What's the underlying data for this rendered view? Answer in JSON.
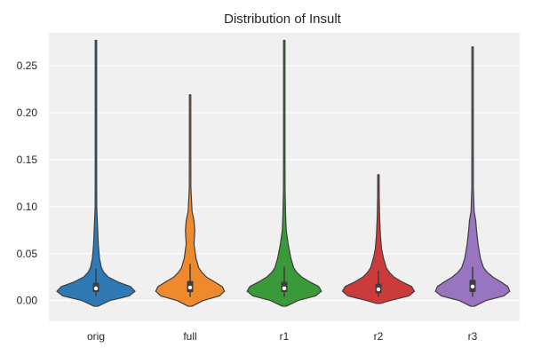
{
  "chart_data": {
    "type": "violin",
    "title": "Distribution of Insult",
    "xlabel": "",
    "ylabel": "",
    "ylim": [
      -0.022,
      0.285
    ],
    "yticks": [
      0.0,
      0.05,
      0.1,
      0.15,
      0.2,
      0.25
    ],
    "ytick_labels": [
      "0.00",
      "0.05",
      "0.10",
      "0.15",
      "0.20",
      "0.25"
    ],
    "grid": true,
    "background": "#f0f0f0",
    "categories": [
      "orig",
      "full",
      "r1",
      "r2",
      "r3"
    ],
    "series": [
      {
        "color": "#2f79b5",
        "min": -0.006,
        "max": 0.277,
        "q1": 0.009,
        "median": 0.013,
        "q3": 0.019,
        "whisker_low": 0.005,
        "whisker_high": 0.034,
        "density": [
          [
            -0.006,
            0.05
          ],
          [
            0.0,
            0.35
          ],
          [
            0.005,
            0.85
          ],
          [
            0.01,
            1.0
          ],
          [
            0.015,
            0.88
          ],
          [
            0.02,
            0.55
          ],
          [
            0.025,
            0.32
          ],
          [
            0.03,
            0.2
          ],
          [
            0.035,
            0.14
          ],
          [
            0.045,
            0.09
          ],
          [
            0.06,
            0.06
          ],
          [
            0.08,
            0.04
          ],
          [
            0.1,
            0.02
          ],
          [
            0.15,
            0.012
          ],
          [
            0.2,
            0.01
          ],
          [
            0.25,
            0.008
          ],
          [
            0.277,
            0.004
          ]
        ]
      },
      {
        "color": "#ee8a2d",
        "min": -0.006,
        "max": 0.219,
        "q1": 0.009,
        "median": 0.014,
        "q3": 0.021,
        "whisker_low": 0.004,
        "whisker_high": 0.039,
        "density": [
          [
            -0.006,
            0.05
          ],
          [
            0.0,
            0.33
          ],
          [
            0.005,
            0.75
          ],
          [
            0.01,
            0.88
          ],
          [
            0.015,
            0.82
          ],
          [
            0.02,
            0.62
          ],
          [
            0.025,
            0.42
          ],
          [
            0.03,
            0.3
          ],
          [
            0.035,
            0.22
          ],
          [
            0.045,
            0.15
          ],
          [
            0.06,
            0.1
          ],
          [
            0.075,
            0.12
          ],
          [
            0.085,
            0.1
          ],
          [
            0.095,
            0.05
          ],
          [
            0.12,
            0.02
          ],
          [
            0.17,
            0.012
          ],
          [
            0.219,
            0.004
          ]
        ]
      },
      {
        "color": "#3a9a3a",
        "min": -0.006,
        "max": 0.277,
        "q1": 0.009,
        "median": 0.013,
        "q3": 0.02,
        "whisker_low": 0.004,
        "whisker_high": 0.036,
        "density": [
          [
            -0.006,
            0.05
          ],
          [
            0.0,
            0.35
          ],
          [
            0.005,
            0.8
          ],
          [
            0.01,
            0.95
          ],
          [
            0.015,
            0.88
          ],
          [
            0.02,
            0.65
          ],
          [
            0.025,
            0.45
          ],
          [
            0.03,
            0.32
          ],
          [
            0.035,
            0.24
          ],
          [
            0.045,
            0.17
          ],
          [
            0.06,
            0.1
          ],
          [
            0.075,
            0.05
          ],
          [
            0.09,
            0.035
          ],
          [
            0.12,
            0.02
          ],
          [
            0.17,
            0.012
          ],
          [
            0.22,
            0.008
          ],
          [
            0.277,
            0.004
          ]
        ]
      },
      {
        "color": "#cc3b3b",
        "min": -0.003,
        "max": 0.134,
        "q1": 0.008,
        "median": 0.012,
        "q3": 0.018,
        "whisker_low": 0.004,
        "whisker_high": 0.032,
        "density": [
          [
            -0.003,
            0.05
          ],
          [
            0.0,
            0.3
          ],
          [
            0.005,
            0.78
          ],
          [
            0.01,
            0.92
          ],
          [
            0.015,
            0.85
          ],
          [
            0.02,
            0.6
          ],
          [
            0.025,
            0.4
          ],
          [
            0.03,
            0.28
          ],
          [
            0.035,
            0.2
          ],
          [
            0.045,
            0.13
          ],
          [
            0.055,
            0.08
          ],
          [
            0.07,
            0.05
          ],
          [
            0.09,
            0.03
          ],
          [
            0.11,
            0.02
          ],
          [
            0.134,
            0.004
          ]
        ]
      },
      {
        "color": "#9a75bf",
        "min": -0.006,
        "max": 0.27,
        "q1": 0.009,
        "median": 0.015,
        "q3": 0.022,
        "whisker_low": 0.004,
        "whisker_high": 0.036,
        "density": [
          [
            -0.006,
            0.05
          ],
          [
            0.0,
            0.34
          ],
          [
            0.005,
            0.8
          ],
          [
            0.01,
            0.95
          ],
          [
            0.015,
            0.9
          ],
          [
            0.02,
            0.72
          ],
          [
            0.025,
            0.52
          ],
          [
            0.03,
            0.38
          ],
          [
            0.035,
            0.28
          ],
          [
            0.045,
            0.2
          ],
          [
            0.06,
            0.14
          ],
          [
            0.075,
            0.1
          ],
          [
            0.085,
            0.08
          ],
          [
            0.095,
            0.04
          ],
          [
            0.12,
            0.02
          ],
          [
            0.18,
            0.012
          ],
          [
            0.24,
            0.008
          ],
          [
            0.27,
            0.004
          ]
        ]
      }
    ]
  }
}
